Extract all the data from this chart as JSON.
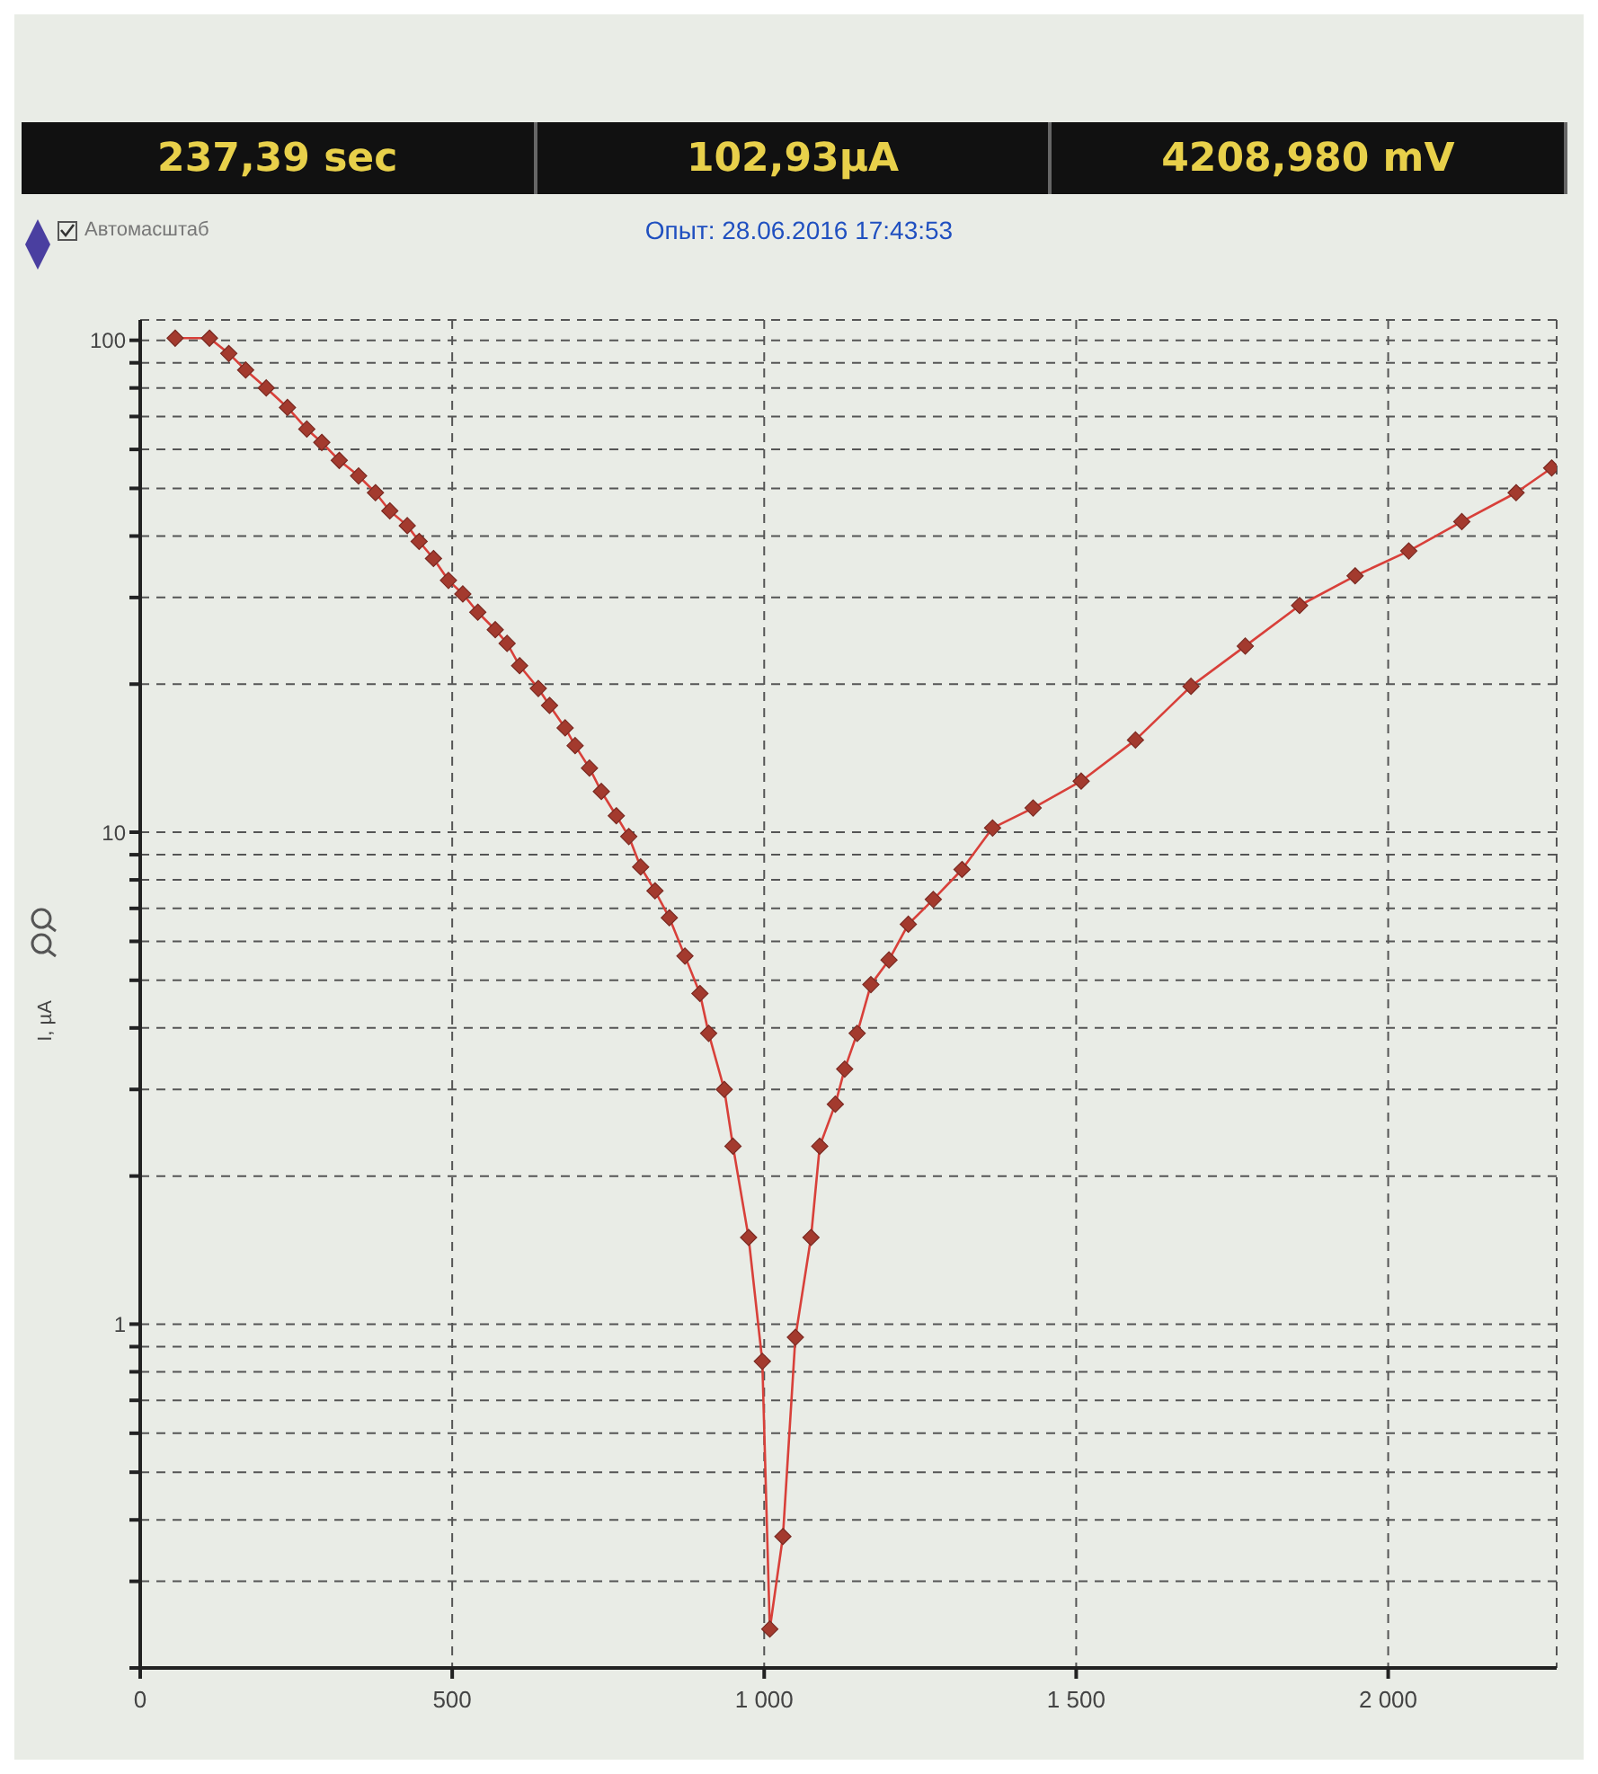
{
  "chart_data": {
    "type": "line",
    "title": "Опыт: 28.06.2016 17:43:53",
    "ylabel": "I, µA",
    "annotations": [
      "237,39 sec",
      "102,93µA",
      "4208,980 mV",
      "Автомасштаб"
    ],
    "x": [
      56,
      111,
      142,
      169,
      202,
      236,
      267,
      291,
      319,
      350,
      377,
      400,
      428,
      447,
      470,
      494,
      517,
      541,
      569,
      588,
      608,
      638,
      656,
      681,
      697,
      720,
      739,
      763,
      783,
      802,
      825,
      848,
      873,
      897,
      911,
      936,
      950,
      975,
      997,
      1009,
      1030,
      1050,
      1075,
      1089,
      1114,
      1129,
      1149,
      1171,
      1200,
      1231,
      1271,
      1317,
      1366,
      1431,
      1508,
      1595,
      1684,
      1771,
      1858,
      1947,
      2033,
      2118,
      2205,
      2262
    ],
    "series": [
      {
        "color": "#a33a2e",
        "values": [
          101,
          101,
          94,
          87,
          80,
          73,
          66,
          62,
          57,
          53,
          49,
          45,
          42,
          39,
          36,
          32.5,
          30.5,
          28,
          25.8,
          24.2,
          21.8,
          19.6,
          18.1,
          16.3,
          15,
          13.5,
          12.1,
          10.8,
          9.8,
          8.5,
          7.6,
          6.7,
          5.6,
          4.7,
          3.9,
          3,
          2.3,
          1.5,
          0.84,
          0.24,
          0.37,
          0.94,
          1.5,
          2.3,
          2.8,
          3.3,
          3.9,
          4.9,
          5.5,
          6.5,
          7.3,
          8.4,
          10.2,
          11.2,
          12.7,
          15.4,
          19.8,
          23.9,
          28.9,
          33.2,
          37.3,
          42.8,
          49,
          55
        ]
      }
    ],
    "xlim": [
      0,
      2270
    ],
    "xticks": [
      0,
      500,
      {
        "value": 1000,
        "label": "1 000"
      },
      {
        "value": 1500,
        "label": "1 500"
      },
      {
        "value": 2000,
        "label": "2 000"
      }
    ],
    "ylim": [
      0.2,
      110
    ],
    "log": "y",
    "yticks": [
      {
        "value": 0.2,
        "label": null
      },
      {
        "value": 0.3,
        "label": null
      },
      {
        "value": 0.4,
        "label": null
      },
      {
        "value": 0.5,
        "label": null
      },
      {
        "value": 0.6,
        "label": null
      },
      {
        "value": 0.7,
        "label": null
      },
      {
        "value": 0.8,
        "label": null
      },
      {
        "value": 0.9,
        "label": null
      },
      1,
      {
        "value": 2,
        "label": null
      },
      {
        "value": 3,
        "label": null
      },
      {
        "value": 4,
        "label": null
      },
      {
        "value": 5,
        "label": null
      },
      {
        "value": 6,
        "label": null
      },
      {
        "value": 7,
        "label": null
      },
      {
        "value": 8,
        "label": null
      },
      {
        "value": 9,
        "label": null
      },
      10,
      {
        "value": 20,
        "label": null
      },
      {
        "value": 30,
        "label": null
      },
      {
        "value": 40,
        "label": null
      },
      {
        "value": 50,
        "label": null
      },
      {
        "value": 60,
        "label": null
      },
      {
        "value": 70,
        "label": null
      },
      {
        "value": 80,
        "label": null
      },
      {
        "value": 90,
        "label": null
      },
      100
    ],
    "grid": true,
    "legend": false,
    "marker": "diamond",
    "line_style": "solid"
  }
}
